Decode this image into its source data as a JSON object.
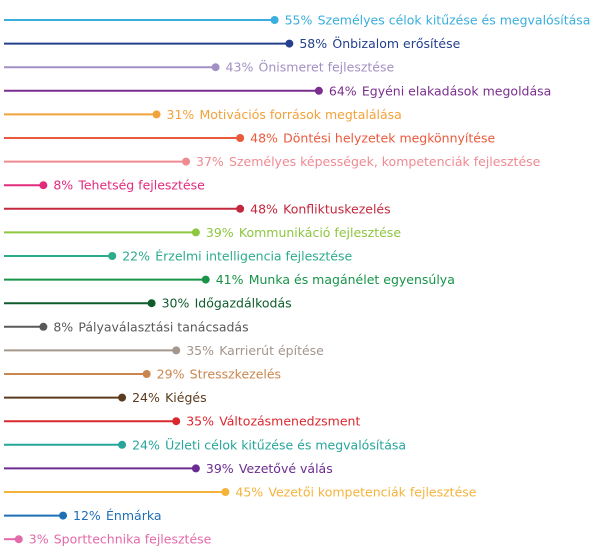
{
  "chart_data": {
    "type": "bar",
    "orientation": "horizontal",
    "style": "lollipop",
    "title": "",
    "xlabel": "",
    "ylabel": "",
    "xlim": [
      0,
      100
    ],
    "grid": false,
    "legend": "none",
    "value_suffix": "%",
    "categories": [
      "Személyes célok kitűzése és megvalósítása",
      "Önbizalom erősítése",
      "Önismeret fejlesztése",
      "Egyéni elakadások megoldása",
      "Motivációs források megtalálása",
      "Döntési helyzetek megkönnyítése",
      "Személyes képességek, kompetenciák fejlesztése",
      "Tehetség fejlesztése",
      "Konfliktuskezelés",
      "Kommunikáció fejlesztése",
      "Érzelmi intelligencia fejlesztése",
      "Munka és magánélet egyensúlya",
      "Időgazdálkodás",
      "Pályaválasztási tanácsadás",
      "Karrierút építése",
      "Stresszkezelés",
      "Kiégés",
      "Változásmenedzsment",
      "Üzleti célok kitűzése és megvalósítása",
      "Vezetővé válás",
      "Vezetői kompetenciák fejlesztése",
      "Énmárka",
      "Sporttechnika fejlesztése"
    ],
    "values": [
      55,
      58,
      43,
      64,
      31,
      48,
      37,
      8,
      48,
      39,
      22,
      41,
      30,
      8,
      35,
      29,
      24,
      35,
      24,
      39,
      45,
      12,
      3
    ],
    "colors": [
      "#3aaedc",
      "#24408e",
      "#a290c4",
      "#7a2f8e",
      "#f2a23a",
      "#ea5a3c",
      "#ef8a92",
      "#e32b7e",
      "#c3283e",
      "#8dc63f",
      "#2dab8b",
      "#179448",
      "#0e5b2b",
      "#58595b",
      "#a3968c",
      "#c9874e",
      "#5b3b1e",
      "#d9282f",
      "#27a59a",
      "#6b2c91",
      "#f5b33c",
      "#1f6fb6",
      "#e36aa8"
    ]
  }
}
